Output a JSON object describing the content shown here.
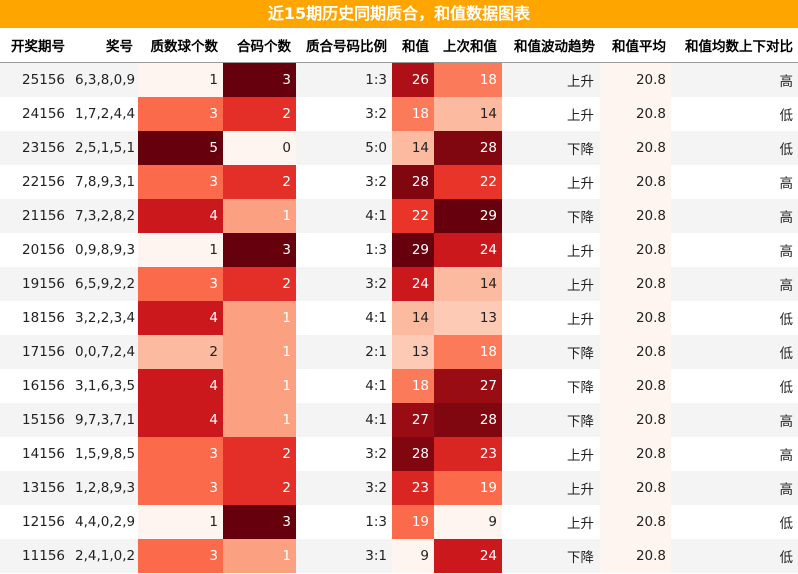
{
  "title": "近15期历史同期质合，和值数据图表",
  "chart_data": {
    "type": "table",
    "columns": [
      "开奖期号",
      "奖号",
      "质数球个数",
      "合码个数",
      "质合号码比例",
      "和值",
      "上次和值",
      "和值波动趋势",
      "和值平均",
      "和值均数上下对比"
    ],
    "rows": [
      [
        "25156",
        "6,3,8,0,9",
        1,
        3,
        "1:3",
        26,
        18,
        "上升",
        "20.8",
        "高"
      ],
      [
        "24156",
        "1,7,2,4,4",
        3,
        2,
        "3:2",
        18,
        14,
        "上升",
        "20.8",
        "低"
      ],
      [
        "23156",
        "2,5,1,5,1",
        5,
        0,
        "5:0",
        14,
        28,
        "下降",
        "20.8",
        "低"
      ],
      [
        "22156",
        "7,8,9,3,1",
        3,
        2,
        "3:2",
        28,
        22,
        "上升",
        "20.8",
        "高"
      ],
      [
        "21156",
        "7,3,2,8,2",
        4,
        1,
        "4:1",
        22,
        29,
        "下降",
        "20.8",
        "高"
      ],
      [
        "20156",
        "0,9,8,9,3",
        1,
        3,
        "1:3",
        29,
        24,
        "上升",
        "20.8",
        "高"
      ],
      [
        "19156",
        "6,5,9,2,2",
        3,
        2,
        "3:2",
        24,
        14,
        "上升",
        "20.8",
        "高"
      ],
      [
        "18156",
        "3,2,2,3,4",
        4,
        1,
        "4:1",
        14,
        13,
        "上升",
        "20.8",
        "低"
      ],
      [
        "17156",
        "0,0,7,2,4",
        2,
        1,
        "2:1",
        13,
        18,
        "下降",
        "20.8",
        "低"
      ],
      [
        "16156",
        "3,1,6,3,5",
        4,
        1,
        "4:1",
        18,
        27,
        "下降",
        "20.8",
        "低"
      ],
      [
        "15156",
        "9,7,3,7,1",
        4,
        1,
        "4:1",
        27,
        28,
        "下降",
        "20.8",
        "高"
      ],
      [
        "14156",
        "1,5,9,8,5",
        3,
        2,
        "3:2",
        28,
        23,
        "上升",
        "20.8",
        "高"
      ],
      [
        "13156",
        "1,2,8,9,3",
        3,
        2,
        "3:2",
        23,
        19,
        "上升",
        "20.8",
        "高"
      ],
      [
        "12156",
        "4,4,0,2,9",
        1,
        3,
        "1:3",
        19,
        9,
        "上升",
        "20.8",
        "低"
      ],
      [
        "11156",
        "2,4,1,0,2",
        3,
        1,
        "3:1",
        9,
        24,
        "下降",
        "20.8",
        "低"
      ]
    ],
    "heatmap_columns": [
      "质数球个数",
      "合码个数",
      "和值",
      "上次和值"
    ],
    "colormap": "Reds",
    "colors": {
      "header_bar": "#ffa500",
      "title_text": "#ffffff",
      "avg_cell": "#fff5f0"
    }
  }
}
